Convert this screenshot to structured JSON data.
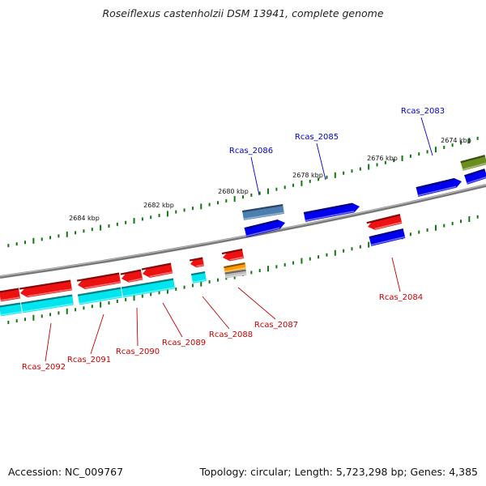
{
  "title": "Roseiflexus castenholzii DSM 13941, complete genome",
  "footer": {
    "accession": "Accession: NC_009767",
    "topology": "Topology: circular; Length: 5,723,298 bp; Genes: 4,385"
  },
  "colors": {
    "red": "#ee1111",
    "blue": "#0000ee",
    "cyan": "#00e5ee",
    "steel": "#4a7fb0",
    "olive": "#6b8e23",
    "orange": "#ff9900",
    "grey": "#bbbbbb",
    "tick": "#117711",
    "backbone": "#888888",
    "label_top": "#0000cc",
    "label_bottom": "#cc0000"
  },
  "tick_labels": [
    {
      "id": "2674",
      "text": "2674 kbp"
    },
    {
      "id": "2676",
      "text": "2676 kbp"
    },
    {
      "id": "2678",
      "text": "2678 kbp"
    },
    {
      "id": "2680",
      "text": "2680 kbp"
    },
    {
      "id": "2682",
      "text": "2682 kbp"
    },
    {
      "id": "2684",
      "text": "2684 kbp"
    }
  ],
  "genes_top": [
    {
      "id": "Rcas_2083",
      "label": "Rcas_2083"
    },
    {
      "id": "Rcas_2085",
      "label": "Rcas_2085"
    },
    {
      "id": "Rcas_2086",
      "label": "Rcas_2086"
    }
  ],
  "genes_bottom": [
    {
      "id": "Rcas_2084",
      "label": "Rcas_2084"
    },
    {
      "id": "Rcas_2087",
      "label": "Rcas_2087"
    },
    {
      "id": "Rcas_2088",
      "label": "Rcas_2088"
    },
    {
      "id": "Rcas_2089",
      "label": "Rcas_2089"
    },
    {
      "id": "Rcas_2090",
      "label": "Rcas_2090"
    },
    {
      "id": "Rcas_2091",
      "label": "Rcas_2091"
    },
    {
      "id": "Rcas_2092",
      "label": "Rcas_2092"
    }
  ]
}
